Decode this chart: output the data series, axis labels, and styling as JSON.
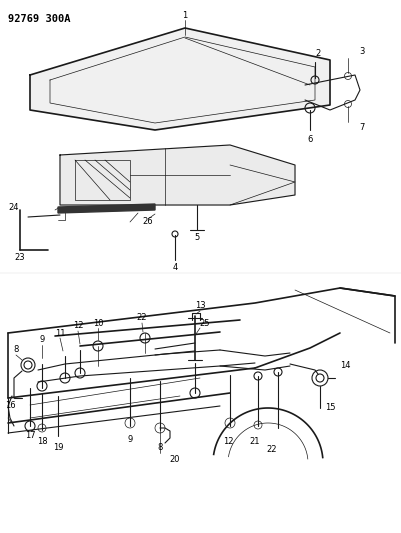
{
  "title": "92769 300A",
  "bg_color": "#ffffff",
  "line_color": "#1a1a1a",
  "label_color": "#000000",
  "fig_width": 4.02,
  "fig_height": 5.33,
  "dpi": 100
}
